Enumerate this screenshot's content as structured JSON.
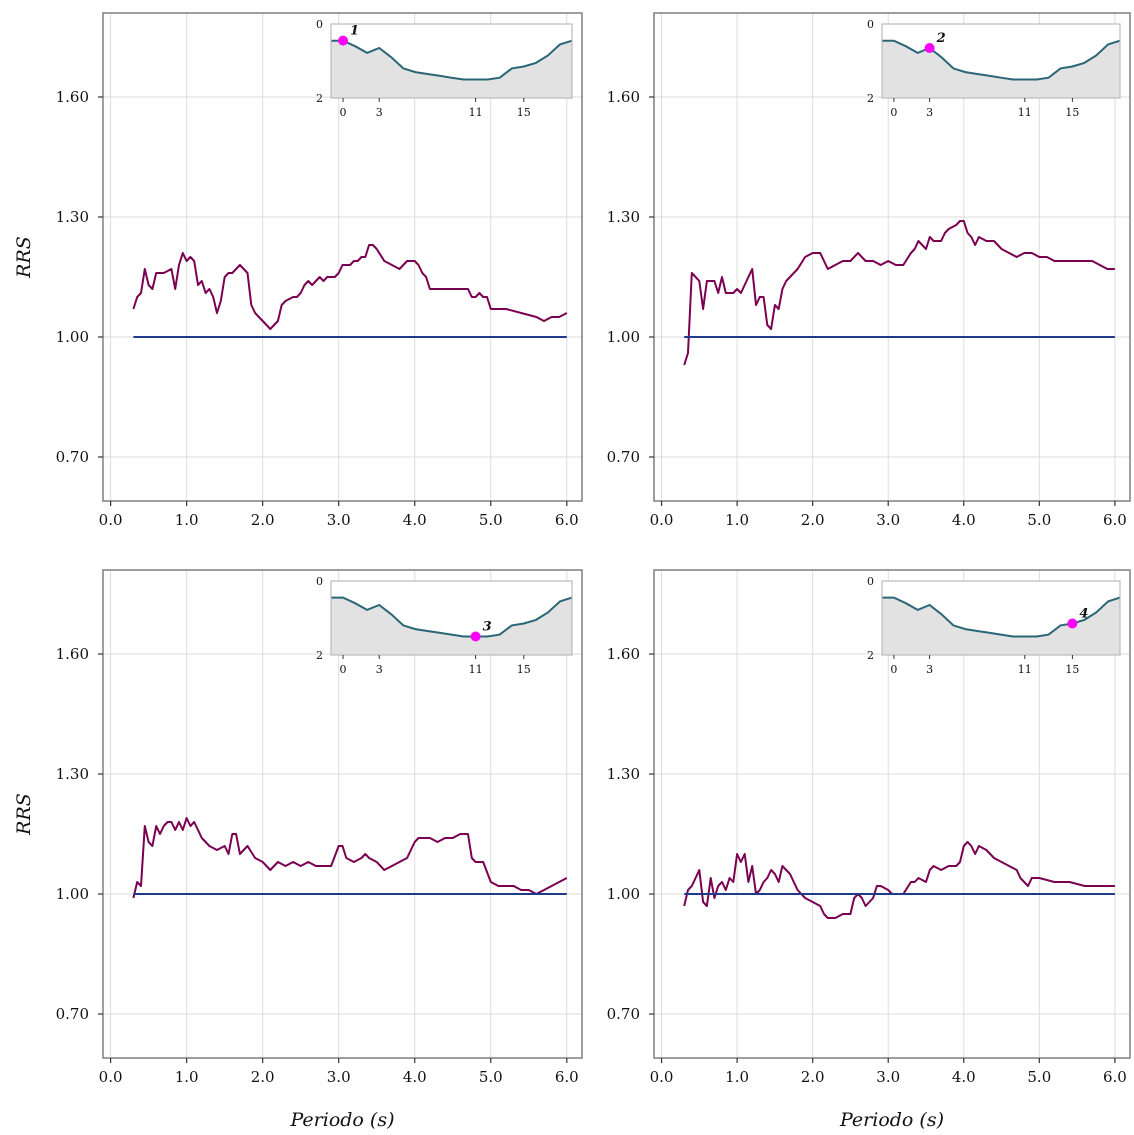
{
  "colors": {
    "rrs_line": "#7a0050",
    "reference_line": "#1f3a8a",
    "inset_line": "#2b6677",
    "inset_fill": "#e2e2e2",
    "marker": "#ff00ff",
    "grid": "#dddddd",
    "frame": "#7f7f7f"
  },
  "chart_data": [
    {
      "type": "line",
      "title": "",
      "xlabel": "",
      "ylabel": "RRS",
      "xlim": [
        -0.1,
        6.2
      ],
      "ylim": [
        0.59,
        1.81
      ],
      "xticks": [
        0.0,
        1.0,
        2.0,
        3.0,
        4.0,
        5.0,
        6.0
      ],
      "xtick_labels": [
        "0.0",
        "1.0",
        "2.0",
        "3.0",
        "4.0",
        "5.0",
        "6.0"
      ],
      "yticks": [
        0.7,
        1.0,
        1.3,
        1.6
      ],
      "ytick_labels": [
        "0.70",
        "1.00",
        "1.30",
        "1.60"
      ],
      "grid": true,
      "series": [
        {
          "x": [
            0.3,
            0.35,
            0.4,
            0.45,
            0.5,
            0.55,
            0.6,
            0.65,
            0.7,
            0.8,
            0.85,
            0.9,
            0.95,
            1.0,
            1.05,
            1.1,
            1.15,
            1.2,
            1.25,
            1.3,
            1.35,
            1.4,
            1.45,
            1.5,
            1.55,
            1.6,
            1.65,
            1.7,
            1.75,
            1.8,
            1.85,
            1.9,
            1.95,
            2.0,
            2.05,
            2.1,
            2.15,
            2.2,
            2.25,
            2.3,
            2.4,
            2.45,
            2.5,
            2.55,
            2.6,
            2.65,
            2.7,
            2.75,
            2.8,
            2.85,
            2.9,
            2.95,
            3.0,
            3.05,
            3.1,
            3.15,
            3.2,
            3.25,
            3.3,
            3.35,
            3.4,
            3.45,
            3.5,
            3.6,
            3.7,
            3.8,
            3.9,
            4.0,
            4.05,
            4.1,
            4.15,
            4.2,
            4.3,
            4.4,
            4.5,
            4.6,
            4.7,
            4.75,
            4.8,
            4.85,
            4.9,
            4.95,
            5.0,
            5.2,
            5.4,
            5.6,
            5.7,
            5.8,
            5.9,
            6.0
          ],
          "y": [
            1.07,
            1.1,
            1.11,
            1.17,
            1.13,
            1.12,
            1.16,
            1.16,
            1.16,
            1.17,
            1.12,
            1.18,
            1.21,
            1.19,
            1.2,
            1.19,
            1.13,
            1.14,
            1.11,
            1.12,
            1.1,
            1.06,
            1.09,
            1.15,
            1.16,
            1.16,
            1.17,
            1.18,
            1.17,
            1.16,
            1.08,
            1.06,
            1.05,
            1.04,
            1.03,
            1.02,
            1.03,
            1.04,
            1.08,
            1.09,
            1.1,
            1.1,
            1.11,
            1.13,
            1.14,
            1.13,
            1.14,
            1.15,
            1.14,
            1.15,
            1.15,
            1.15,
            1.16,
            1.18,
            1.18,
            1.18,
            1.19,
            1.19,
            1.2,
            1.2,
            1.23,
            1.23,
            1.22,
            1.19,
            1.18,
            1.17,
            1.19,
            1.19,
            1.18,
            1.16,
            1.15,
            1.12,
            1.12,
            1.12,
            1.12,
            1.12,
            1.12,
            1.1,
            1.1,
            1.11,
            1.1,
            1.1,
            1.07,
            1.07,
            1.06,
            1.05,
            1.04,
            1.05,
            1.05,
            1.06
          ]
        },
        {
          "x": [
            0.3,
            6.0
          ],
          "y": [
            1.0,
            1.0
          ]
        }
      ],
      "inset": {
        "xticks": [
          0,
          3,
          11,
          15
        ],
        "yticks": [
          0,
          2
        ],
        "xlim": [
          -1,
          19
        ],
        "ylim": [
          2,
          0
        ],
        "profile_x": [
          -1,
          0,
          1,
          2,
          3,
          4,
          5,
          6,
          7,
          8,
          9,
          10,
          11,
          12,
          13,
          14,
          15,
          16,
          17,
          18,
          19
        ],
        "profile_y": [
          0.45,
          0.45,
          0.6,
          0.78,
          0.65,
          0.9,
          1.2,
          1.3,
          1.35,
          1.4,
          1.45,
          1.5,
          1.5,
          1.5,
          1.45,
          1.2,
          1.15,
          1.05,
          0.85,
          0.55,
          0.45
        ],
        "marker_x": 0,
        "marker_label": "1"
      }
    },
    {
      "type": "line",
      "title": "",
      "xlabel": "",
      "ylabel": "",
      "xlim": [
        -0.1,
        6.2
      ],
      "ylim": [
        0.59,
        1.81
      ],
      "xticks": [
        0.0,
        1.0,
        2.0,
        3.0,
        4.0,
        5.0,
        6.0
      ],
      "xtick_labels": [
        "0.0",
        "1.0",
        "2.0",
        "3.0",
        "4.0",
        "5.0",
        "6.0"
      ],
      "yticks": [
        0.7,
        1.0,
        1.3,
        1.6
      ],
      "ytick_labels": [
        "0.70",
        "1.00",
        "1.30",
        "1.60"
      ],
      "grid": true,
      "series": [
        {
          "x": [
            0.3,
            0.35,
            0.4,
            0.45,
            0.5,
            0.55,
            0.6,
            0.65,
            0.7,
            0.75,
            0.8,
            0.85,
            0.9,
            0.95,
            1.0,
            1.05,
            1.1,
            1.15,
            1.2,
            1.25,
            1.3,
            1.35,
            1.4,
            1.45,
            1.5,
            1.55,
            1.6,
            1.65,
            1.7,
            1.8,
            1.9,
            2.0,
            2.1,
            2.2,
            2.3,
            2.4,
            2.5,
            2.6,
            2.7,
            2.8,
            2.9,
            3.0,
            3.1,
            3.2,
            3.3,
            3.35,
            3.4,
            3.45,
            3.5,
            3.55,
            3.6,
            3.7,
            3.75,
            3.8,
            3.9,
            3.95,
            4.0,
            4.05,
            4.1,
            4.15,
            4.2,
            4.3,
            4.4,
            4.5,
            4.6,
            4.7,
            4.8,
            4.9,
            5.0,
            5.1,
            5.2,
            5.3,
            5.4,
            5.5,
            5.6,
            5.7,
            5.8,
            5.9,
            6.0
          ],
          "y": [
            0.93,
            0.96,
            1.16,
            1.15,
            1.14,
            1.07,
            1.14,
            1.14,
            1.14,
            1.11,
            1.15,
            1.11,
            1.11,
            1.11,
            1.12,
            1.11,
            1.13,
            1.15,
            1.17,
            1.08,
            1.1,
            1.1,
            1.03,
            1.02,
            1.08,
            1.07,
            1.12,
            1.14,
            1.15,
            1.17,
            1.2,
            1.21,
            1.21,
            1.17,
            1.18,
            1.19,
            1.19,
            1.21,
            1.19,
            1.19,
            1.18,
            1.19,
            1.18,
            1.18,
            1.21,
            1.22,
            1.24,
            1.23,
            1.22,
            1.25,
            1.24,
            1.24,
            1.26,
            1.27,
            1.28,
            1.29,
            1.29,
            1.26,
            1.25,
            1.23,
            1.25,
            1.24,
            1.24,
            1.22,
            1.21,
            1.2,
            1.21,
            1.21,
            1.2,
            1.2,
            1.19,
            1.19,
            1.19,
            1.19,
            1.19,
            1.19,
            1.18,
            1.17,
            1.17
          ]
        },
        {
          "x": [
            0.3,
            6.0
          ],
          "y": [
            1.0,
            1.0
          ]
        }
      ],
      "inset": {
        "xticks": [
          0,
          3,
          11,
          15
        ],
        "yticks": [
          0,
          2
        ],
        "xlim": [
          -1,
          19
        ],
        "ylim": [
          2,
          0
        ],
        "profile_x": [
          -1,
          0,
          1,
          2,
          3,
          4,
          5,
          6,
          7,
          8,
          9,
          10,
          11,
          12,
          13,
          14,
          15,
          16,
          17,
          18,
          19
        ],
        "profile_y": [
          0.45,
          0.45,
          0.6,
          0.78,
          0.65,
          0.9,
          1.2,
          1.3,
          1.35,
          1.4,
          1.45,
          1.5,
          1.5,
          1.5,
          1.45,
          1.2,
          1.15,
          1.05,
          0.85,
          0.55,
          0.45
        ],
        "marker_x": 3,
        "marker_label": "2"
      }
    },
    {
      "type": "line",
      "title": "",
      "xlabel": "Periodo (s)",
      "ylabel": "RRS",
      "xlim": [
        -0.1,
        6.2
      ],
      "ylim": [
        0.59,
        1.81
      ],
      "xticks": [
        0.0,
        1.0,
        2.0,
        3.0,
        4.0,
        5.0,
        6.0
      ],
      "xtick_labels": [
        "0.0",
        "1.0",
        "2.0",
        "3.0",
        "4.0",
        "5.0",
        "6.0"
      ],
      "yticks": [
        0.7,
        1.0,
        1.3,
        1.6
      ],
      "ytick_labels": [
        "0.70",
        "1.00",
        "1.30",
        "1.60"
      ],
      "grid": true,
      "series": [
        {
          "x": [
            0.3,
            0.35,
            0.4,
            0.45,
            0.5,
            0.55,
            0.6,
            0.65,
            0.7,
            0.75,
            0.8,
            0.85,
            0.9,
            0.95,
            1.0,
            1.05,
            1.1,
            1.15,
            1.2,
            1.3,
            1.4,
            1.5,
            1.55,
            1.6,
            1.65,
            1.7,
            1.8,
            1.9,
            2.0,
            2.1,
            2.2,
            2.3,
            2.4,
            2.5,
            2.6,
            2.7,
            2.8,
            2.9,
            3.0,
            3.05,
            3.1,
            3.2,
            3.3,
            3.35,
            3.4,
            3.5,
            3.6,
            3.7,
            3.8,
            3.9,
            4.0,
            4.05,
            4.1,
            4.15,
            4.2,
            4.3,
            4.4,
            4.5,
            4.6,
            4.7,
            4.75,
            4.8,
            4.9,
            5.0,
            5.1,
            5.2,
            5.3,
            5.4,
            5.5,
            5.6,
            5.7,
            5.8,
            5.9,
            6.0
          ],
          "y": [
            0.99,
            1.03,
            1.02,
            1.17,
            1.13,
            1.12,
            1.17,
            1.15,
            1.17,
            1.18,
            1.18,
            1.16,
            1.18,
            1.16,
            1.19,
            1.17,
            1.18,
            1.16,
            1.14,
            1.12,
            1.11,
            1.12,
            1.1,
            1.15,
            1.15,
            1.1,
            1.12,
            1.09,
            1.08,
            1.06,
            1.08,
            1.07,
            1.08,
            1.07,
            1.08,
            1.07,
            1.07,
            1.07,
            1.12,
            1.12,
            1.09,
            1.08,
            1.09,
            1.1,
            1.09,
            1.08,
            1.06,
            1.07,
            1.08,
            1.09,
            1.13,
            1.14,
            1.14,
            1.14,
            1.14,
            1.13,
            1.14,
            1.14,
            1.15,
            1.15,
            1.09,
            1.08,
            1.08,
            1.03,
            1.02,
            1.02,
            1.02,
            1.01,
            1.01,
            1.0,
            1.01,
            1.02,
            1.03,
            1.04
          ]
        },
        {
          "x": [
            0.3,
            6.0
          ],
          "y": [
            1.0,
            1.0
          ]
        }
      ],
      "inset": {
        "xticks": [
          0,
          3,
          11,
          15
        ],
        "yticks": [
          0,
          2
        ],
        "xlim": [
          -1,
          19
        ],
        "ylim": [
          2,
          0
        ],
        "profile_x": [
          -1,
          0,
          1,
          2,
          3,
          4,
          5,
          6,
          7,
          8,
          9,
          10,
          11,
          12,
          13,
          14,
          15,
          16,
          17,
          18,
          19
        ],
        "profile_y": [
          0.45,
          0.45,
          0.6,
          0.78,
          0.65,
          0.9,
          1.2,
          1.3,
          1.35,
          1.4,
          1.45,
          1.5,
          1.5,
          1.5,
          1.45,
          1.2,
          1.15,
          1.05,
          0.85,
          0.55,
          0.45
        ],
        "marker_x": 11,
        "marker_label": "3"
      }
    },
    {
      "type": "line",
      "title": "",
      "xlabel": "Periodo (s)",
      "ylabel": "",
      "xlim": [
        -0.1,
        6.2
      ],
      "ylim": [
        0.59,
        1.81
      ],
      "xticks": [
        0.0,
        1.0,
        2.0,
        3.0,
        4.0,
        5.0,
        6.0
      ],
      "xtick_labels": [
        "0.0",
        "1.0",
        "2.0",
        "3.0",
        "4.0",
        "5.0",
        "6.0"
      ],
      "yticks": [
        0.7,
        1.0,
        1.3,
        1.6
      ],
      "ytick_labels": [
        "0.70",
        "1.00",
        "1.30",
        "1.60"
      ],
      "grid": true,
      "series": [
        {
          "x": [
            0.3,
            0.35,
            0.4,
            0.45,
            0.5,
            0.55,
            0.6,
            0.65,
            0.7,
            0.75,
            0.8,
            0.85,
            0.9,
            0.95,
            1.0,
            1.05,
            1.1,
            1.15,
            1.2,
            1.25,
            1.3,
            1.35,
            1.4,
            1.45,
            1.5,
            1.55,
            1.6,
            1.7,
            1.8,
            1.85,
            1.9,
            2.0,
            2.1,
            2.15,
            2.2,
            2.3,
            2.4,
            2.5,
            2.55,
            2.6,
            2.65,
            2.7,
            2.8,
            2.85,
            2.9,
            3.0,
            3.05,
            3.1,
            3.2,
            3.3,
            3.35,
            3.4,
            3.5,
            3.55,
            3.6,
            3.7,
            3.8,
            3.9,
            3.95,
            4.0,
            4.05,
            4.1,
            4.15,
            4.2,
            4.3,
            4.4,
            4.5,
            4.6,
            4.7,
            4.75,
            4.8,
            4.85,
            4.9,
            5.0,
            5.2,
            5.4,
            5.6,
            5.8,
            6.0
          ],
          "y": [
            0.97,
            1.01,
            1.02,
            1.04,
            1.06,
            0.98,
            0.97,
            1.04,
            0.99,
            1.02,
            1.03,
            1.01,
            1.04,
            1.03,
            1.1,
            1.08,
            1.1,
            1.03,
            1.07,
            1.0,
            1.01,
            1.03,
            1.04,
            1.06,
            1.05,
            1.03,
            1.07,
            1.05,
            1.01,
            1.0,
            0.99,
            0.98,
            0.97,
            0.95,
            0.94,
            0.94,
            0.95,
            0.95,
            0.99,
            1.0,
            0.99,
            0.97,
            0.99,
            1.02,
            1.02,
            1.01,
            1.0,
            1.0,
            1.0,
            1.03,
            1.03,
            1.04,
            1.03,
            1.06,
            1.07,
            1.06,
            1.07,
            1.07,
            1.08,
            1.12,
            1.13,
            1.12,
            1.1,
            1.12,
            1.11,
            1.09,
            1.08,
            1.07,
            1.06,
            1.04,
            1.03,
            1.02,
            1.04,
            1.04,
            1.03,
            1.03,
            1.02,
            1.02,
            1.02
          ]
        },
        {
          "x": [
            0.3,
            6.0
          ],
          "y": [
            1.0,
            1.0
          ]
        }
      ],
      "inset": {
        "xticks": [
          0,
          3,
          11,
          15
        ],
        "yticks": [
          0,
          2
        ],
        "xlim": [
          -1,
          19
        ],
        "ylim": [
          2,
          0
        ],
        "profile_x": [
          -1,
          0,
          1,
          2,
          3,
          4,
          5,
          6,
          7,
          8,
          9,
          10,
          11,
          12,
          13,
          14,
          15,
          16,
          17,
          18,
          19
        ],
        "profile_y": [
          0.45,
          0.45,
          0.6,
          0.78,
          0.65,
          0.9,
          1.2,
          1.3,
          1.35,
          1.4,
          1.45,
          1.5,
          1.5,
          1.5,
          1.45,
          1.2,
          1.15,
          1.05,
          0.85,
          0.55,
          0.45
        ],
        "marker_x": 15,
        "marker_label": "4"
      }
    }
  ]
}
